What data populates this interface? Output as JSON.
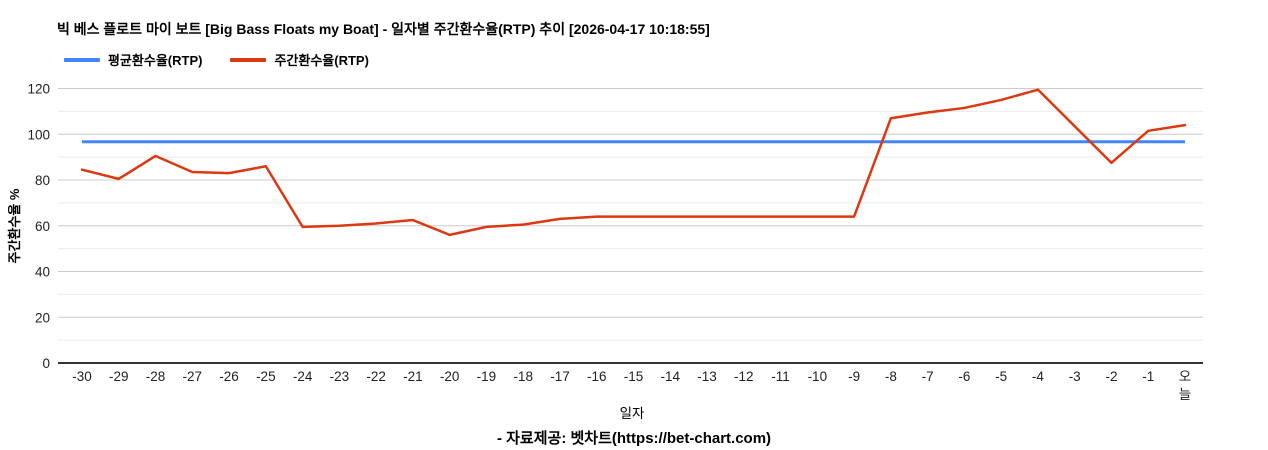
{
  "header": {
    "title": "빅 베스 플로트 마이 보트 [Big Bass Floats my Boat] - 일자별 주간환수율(RTP) 추이 [2026-04-17 10:18:55]"
  },
  "legend": [
    {
      "label": "평균환수율(RTP)",
      "color": "#4285f4"
    },
    {
      "label": "주간환수율(RTP)",
      "color": "#dc3912"
    }
  ],
  "footer": {
    "credit": "- 자료제공: 벳차트(https://bet-chart.com)"
  },
  "chart_data": {
    "type": "line",
    "title": "빅 베스 플로트 마이 보트 [Big Bass Floats my Boat] - 일자별 주간환수율(RTP) 추이 [2026-04-17 10:18:55]",
    "xlabel": "일자",
    "ylabel": "주간환수율 %",
    "ylim": [
      0,
      120
    ],
    "y_major_ticks": [
      0,
      20,
      40,
      60,
      80,
      100,
      120
    ],
    "y_minor_ticks": [
      10,
      30,
      50,
      70,
      90,
      110
    ],
    "grid": "horizontal-only",
    "legend_position": "top-left",
    "categories": [
      "-30",
      "-29",
      "-28",
      "-27",
      "-26",
      "-25",
      "-24",
      "-23",
      "-22",
      "-21",
      "-20",
      "-19",
      "-18",
      "-17",
      "-16",
      "-15",
      "-14",
      "-13",
      "-12",
      "-11",
      "-10",
      "-9",
      "-8",
      "-7",
      "-6",
      "-5",
      "-4",
      "-3",
      "-2",
      "-1",
      "오늘"
    ],
    "series": [
      {
        "name": "평균환수율(RTP)",
        "color": "#4285f4",
        "style": "constant-horizontal-line",
        "constant": 96.7
      },
      {
        "name": "주간환수율(RTP)",
        "color": "#dc3912",
        "values": [
          84.5,
          80.5,
          90.5,
          83.5,
          83,
          86,
          59.5,
          60,
          61,
          62.5,
          56,
          59.5,
          60.5,
          63,
          64,
          64,
          64,
          64,
          64,
          64,
          64,
          64,
          107,
          109.5,
          111.5,
          115,
          119.5,
          103.5,
          87.5,
          101.5,
          104
        ]
      }
    ],
    "colors": {
      "axis_line": "#333333",
      "major_gridline": "#cccccc",
      "minor_gridline": "#ebebeb",
      "tick_label": "#222222"
    }
  }
}
